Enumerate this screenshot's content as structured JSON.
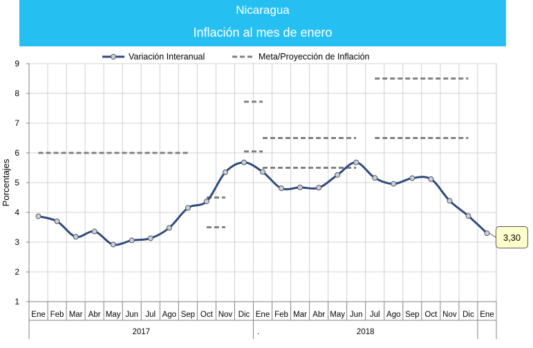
{
  "chart_data": {
    "type": "line",
    "title": "Nicaragua",
    "subtitle": "Inflación al mes de enero",
    "ylabel": "Porcentajes",
    "ylim": [
      1,
      9
    ],
    "y_ticks": [
      "1",
      "2",
      "3",
      "4",
      "5",
      "6",
      "7",
      "8",
      "9"
    ],
    "grid": true,
    "legend_position": "top",
    "categories": [
      "Ene",
      "Feb",
      "Mar",
      "Abr",
      "May",
      "Jun",
      "Jul",
      "Ago",
      "Sep",
      "Oct",
      "Nov",
      "Dic",
      "Ene",
      "Feb",
      "Mar",
      "Abr",
      "May",
      "Jun",
      "Jul",
      "Ago",
      "Sep",
      "Oct",
      "Nov",
      "Dic",
      "Ene"
    ],
    "year_labels": [
      "2017",
      ".",
      "2018"
    ],
    "series": [
      {
        "name": "Variación Interanual",
        "color": "#2e4a7d",
        "values": [
          3.87,
          3.7,
          3.18,
          3.36,
          2.92,
          3.06,
          3.13,
          3.48,
          4.15,
          4.37,
          5.35,
          5.68,
          5.36,
          4.81,
          4.84,
          4.83,
          5.26,
          5.68,
          5.16,
          4.96,
          5.15,
          5.12,
          4.39,
          3.88,
          3.3
        ]
      }
    ],
    "projection": {
      "name": "Meta/Proyección de Inflación",
      "color": "#808080",
      "segments": [
        {
          "x_start": 0,
          "x_end": 8,
          "value": 6.0
        },
        {
          "x_start": 9,
          "x_end": 10,
          "value": 4.5
        },
        {
          "x_start": 9,
          "x_end": 10,
          "value": 3.5
        },
        {
          "x_start": 11,
          "x_end": 12,
          "value": 7.72
        },
        {
          "x_start": 11,
          "x_end": 12,
          "value": 6.05
        },
        {
          "x_start": 12,
          "x_end": 17,
          "value": 6.5
        },
        {
          "x_start": 12,
          "x_end": 17,
          "value": 5.5
        },
        {
          "x_start": 18,
          "x_end": 23,
          "value": 8.5
        },
        {
          "x_start": 18,
          "x_end": 23,
          "value": 6.5
        }
      ]
    },
    "last_value_label": "3,30"
  }
}
